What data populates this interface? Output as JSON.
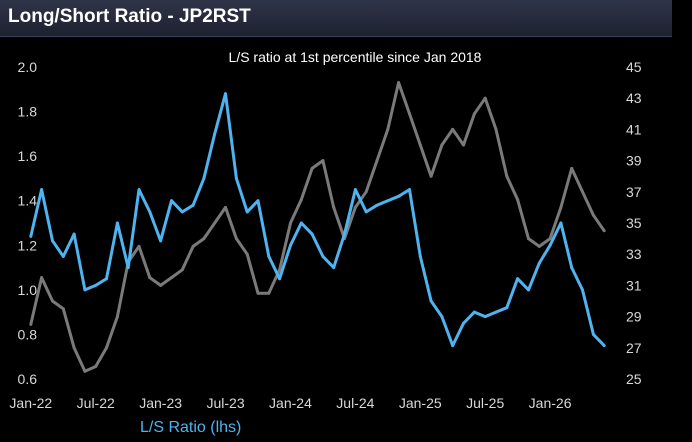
{
  "header": {
    "title": "Long/Short Ratio - JP2RST"
  },
  "chart_data": {
    "type": "line",
    "title": "Long/Short Ratio - JP2RST",
    "annotation": "L/S ratio at 1st percentile since Jan 2018",
    "legend": "bottom",
    "grid": false,
    "x_range": [
      "2021-12",
      "2026-07"
    ],
    "x_ticks": [
      "Jan-22",
      "Jul-22",
      "Jan-23",
      "Jul-23",
      "Jan-24",
      "Jul-24",
      "Jan-25",
      "Jul-25",
      "Jan-26"
    ],
    "y_left": {
      "range": [
        0.6,
        2.0
      ],
      "ticks": [
        "2.0",
        "1.8",
        "1.6",
        "1.4",
        "1.2",
        "1.0",
        "0.8",
        "0.6"
      ]
    },
    "y_right": {
      "range": [
        25,
        45
      ],
      "ticks": [
        "45",
        "43",
        "41",
        "39",
        "37",
        "35",
        "33",
        "31",
        "29",
        "27",
        "25"
      ]
    },
    "series": [
      {
        "name": "L/S Ratio (lhs)",
        "axis": "left",
        "color": "#4fb3f0",
        "x": [
          "2022-01",
          "2022-02",
          "2022-03",
          "2022-04",
          "2022-05",
          "2022-06",
          "2022-07",
          "2022-08",
          "2022-09",
          "2022-10",
          "2022-11",
          "2022-12",
          "2023-01",
          "2023-02",
          "2023-03",
          "2023-04",
          "2023-05",
          "2023-06",
          "2023-07",
          "2023-08",
          "2023-09",
          "2023-10",
          "2023-11",
          "2023-12",
          "2024-01",
          "2024-02",
          "2024-03",
          "2024-04",
          "2024-05",
          "2024-06",
          "2024-07",
          "2024-08",
          "2024-09",
          "2024-10",
          "2024-11",
          "2024-12",
          "2025-01",
          "2025-02",
          "2025-03",
          "2025-04",
          "2025-05",
          "2025-06",
          "2025-07",
          "2025-08",
          "2025-09",
          "2025-10",
          "2025-11",
          "2025-12",
          "2026-01",
          "2026-02",
          "2026-03",
          "2026-04",
          "2026-05",
          "2026-06"
        ],
        "values": [
          1.24,
          1.45,
          1.22,
          1.15,
          1.25,
          1.0,
          1.02,
          1.05,
          1.3,
          1.1,
          1.45,
          1.35,
          1.22,
          1.4,
          1.35,
          1.38,
          1.5,
          1.7,
          1.88,
          1.5,
          1.35,
          1.4,
          1.15,
          1.05,
          1.2,
          1.3,
          1.25,
          1.15,
          1.1,
          1.25,
          1.45,
          1.35,
          1.38,
          1.4,
          1.42,
          1.45,
          1.15,
          0.95,
          0.88,
          0.75,
          0.85,
          0.9,
          0.88,
          0.9,
          0.92,
          1.05,
          1.0,
          1.12,
          1.2,
          1.3,
          1.1,
          1.0,
          0.8,
          0.75
        ]
      },
      {
        "name": "",
        "axis": "right",
        "color": "#7a7a7a",
        "x": [
          "2022-01",
          "2022-02",
          "2022-03",
          "2022-04",
          "2022-05",
          "2022-06",
          "2022-07",
          "2022-08",
          "2022-09",
          "2022-10",
          "2022-11",
          "2022-12",
          "2023-01",
          "2023-02",
          "2023-03",
          "2023-04",
          "2023-05",
          "2023-06",
          "2023-07",
          "2023-08",
          "2023-09",
          "2023-10",
          "2023-11",
          "2023-12",
          "2024-01",
          "2024-02",
          "2024-03",
          "2024-04",
          "2024-05",
          "2024-06",
          "2024-07",
          "2024-08",
          "2024-09",
          "2024-10",
          "2024-11",
          "2024-12",
          "2025-01",
          "2025-02",
          "2025-03",
          "2025-04",
          "2025-05",
          "2025-06",
          "2025-07",
          "2025-08",
          "2025-09",
          "2025-10",
          "2025-11",
          "2025-12",
          "2026-01",
          "2026-02",
          "2026-03",
          "2026-04",
          "2026-05",
          "2026-06"
        ],
        "values": [
          28.5,
          31.5,
          30.0,
          29.5,
          27.0,
          25.5,
          25.8,
          27.0,
          29.0,
          32.5,
          33.5,
          31.5,
          31.0,
          31.5,
          32.0,
          33.5,
          34.0,
          35.0,
          36.0,
          34.0,
          33.0,
          30.5,
          30.5,
          32.0,
          35.0,
          36.5,
          38.5,
          39.0,
          36.0,
          34.0,
          36.0,
          37.0,
          39.0,
          41.0,
          44.0,
          42.0,
          40.0,
          38.0,
          40.0,
          41.0,
          40.0,
          42.0,
          43.0,
          41.0,
          38.0,
          36.5,
          34.0,
          33.5,
          34.0,
          36.0,
          38.5,
          37.0,
          35.5,
          34.5
        ]
      }
    ]
  }
}
